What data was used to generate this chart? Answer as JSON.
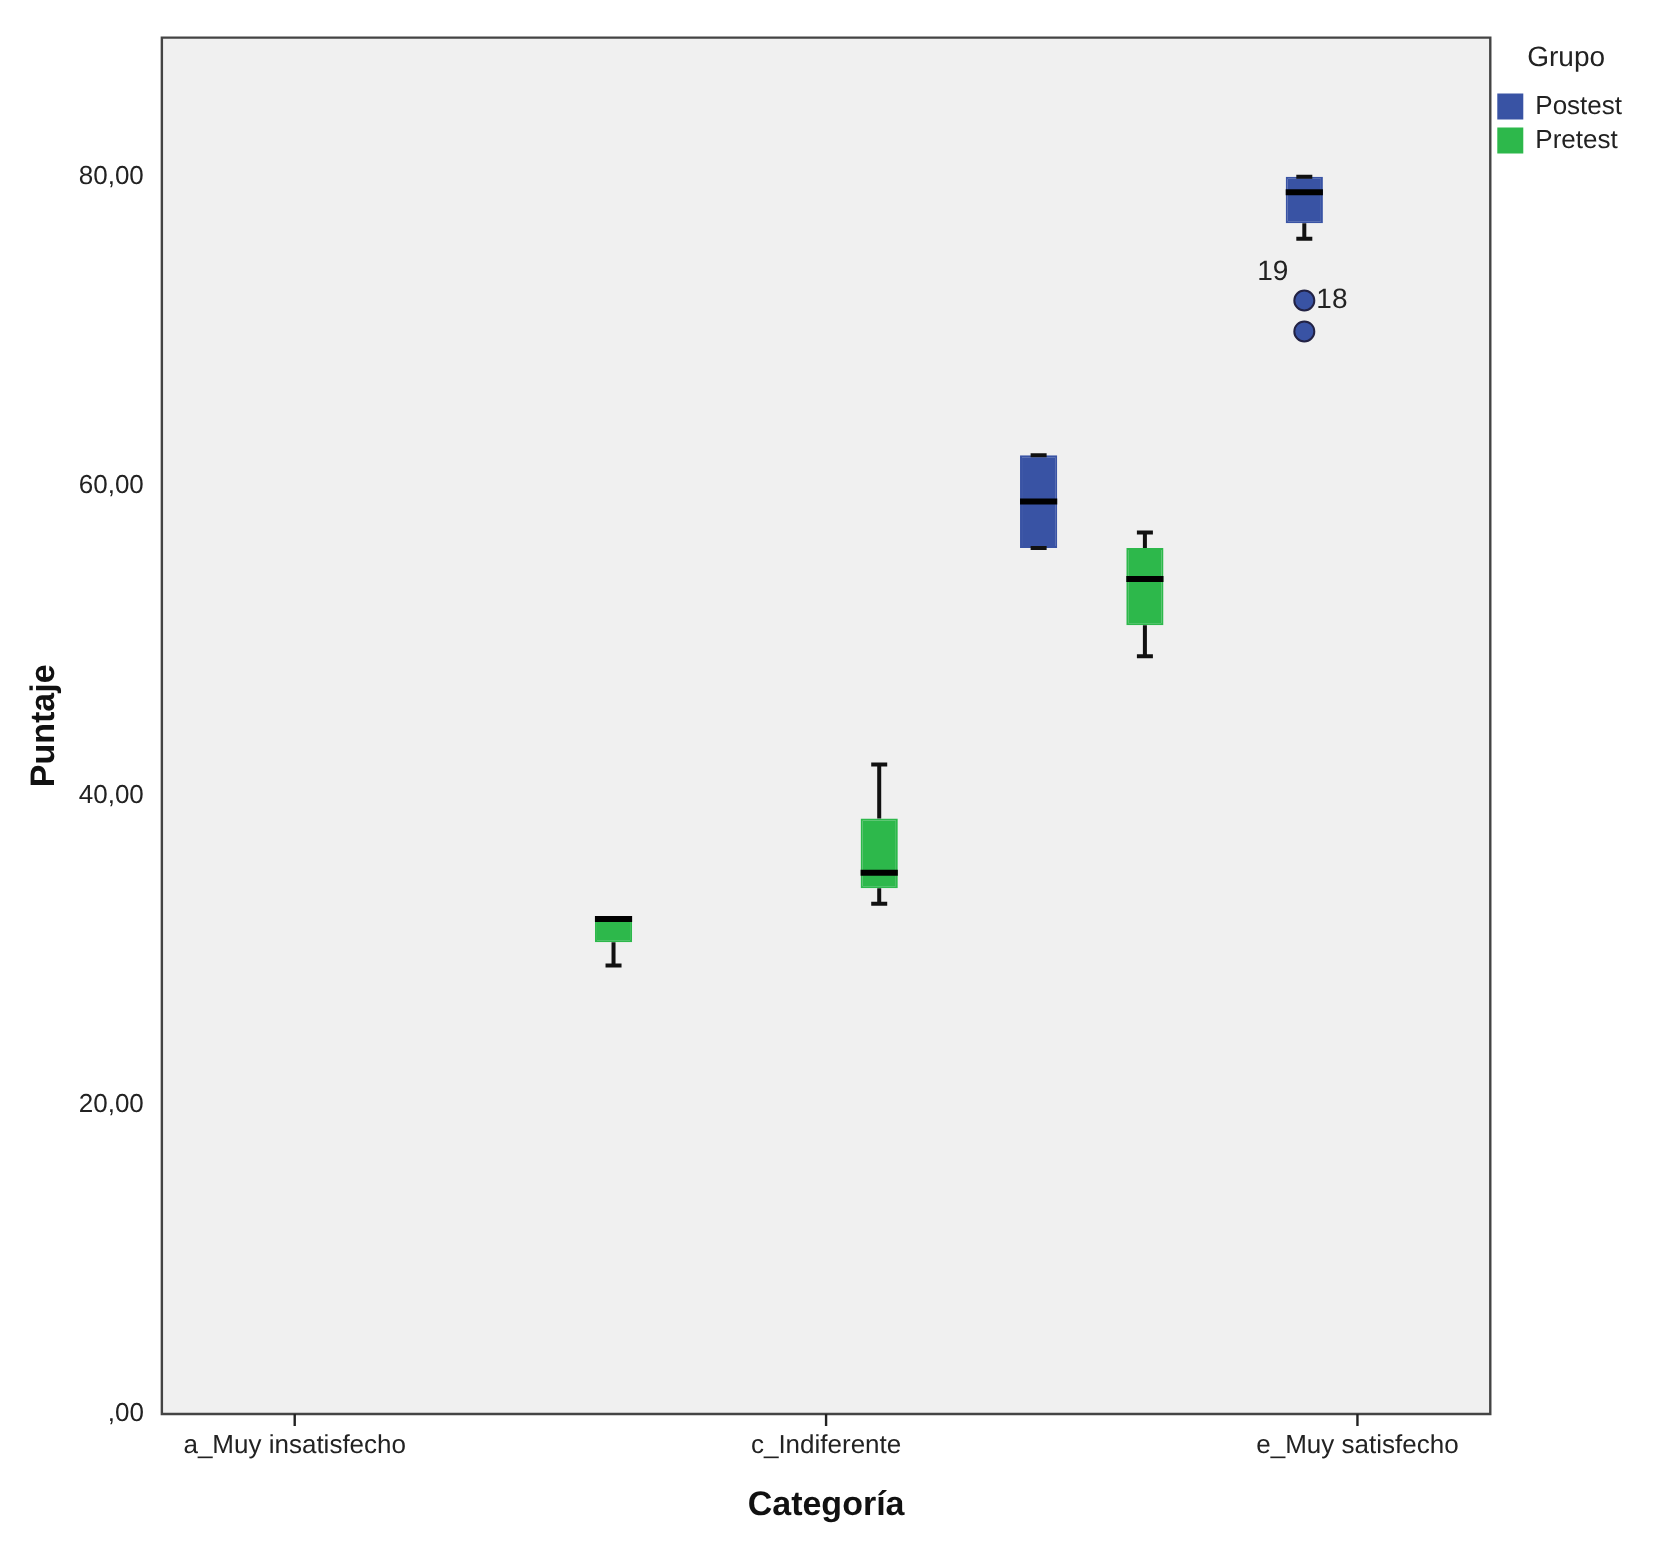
{
  "chart_data": {
    "type": "box",
    "xlabel": "Categoría",
    "ylabel": "Puntaje",
    "legend_title": "Grupo",
    "legend": "top right",
    "grid": false,
    "categories": [
      "a_Muy insatisfecho",
      null,
      "c_Indiferente",
      null,
      "e_Muy satisfecho"
    ],
    "ylim": [
      0,
      89
    ],
    "yticks": [
      {
        "value": 0,
        "label": ",00"
      },
      {
        "value": 20,
        "label": "20,00"
      },
      {
        "value": 40,
        "label": "40,00"
      },
      {
        "value": 60,
        "label": "60,00"
      },
      {
        "value": 80,
        "label": "80,00"
      }
    ],
    "series": [
      {
        "name": "Postest",
        "color": "#3953a4",
        "boxes": [
          null,
          null,
          null,
          {
            "low": 56,
            "q1": 56,
            "median": 59,
            "q3": 62,
            "high": 62
          },
          {
            "low": 76,
            "q1": 77,
            "median": 79,
            "q3": 80,
            "high": 80,
            "outliers": [
              72,
              70
            ]
          }
        ]
      },
      {
        "name": "Pretest",
        "color": "#2db84b",
        "boxes": [
          null,
          {
            "low": 29,
            "q1": 30.5,
            "median": 32,
            "q3": 32,
            "high": 32
          },
          {
            "low": 33,
            "q1": 34,
            "median": 35,
            "q3": 38.5,
            "high": 42
          },
          {
            "low": 49,
            "q1": 51,
            "median": 54,
            "q3": 56,
            "high": 57
          },
          null
        ]
      }
    ],
    "annotations": [
      "19",
      "18"
    ]
  }
}
